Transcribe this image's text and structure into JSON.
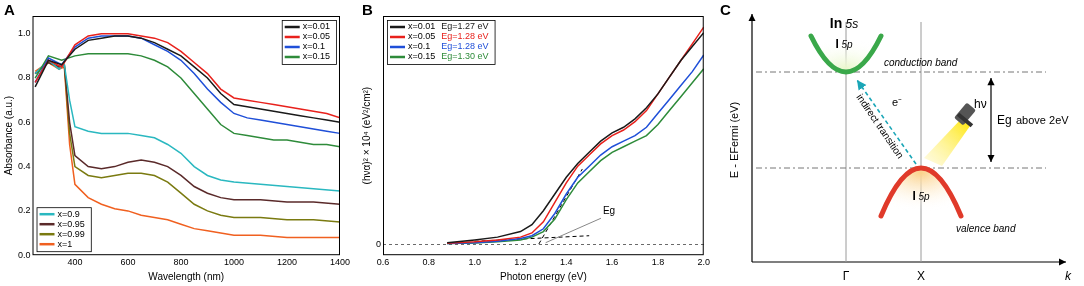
{
  "chart_data": [
    {
      "type": "line",
      "panel": "A",
      "x_label": "Wavelength (nm)",
      "y_label": "Absorbance (a.u.)",
      "xlim": [
        240,
        1400
      ],
      "xticks": [
        400,
        600,
        800,
        1000,
        1200,
        1400
      ],
      "ylim": [
        0,
        1.08
      ],
      "yticks": [
        {
          "value": 0,
          "label": "0.0"
        },
        0.2,
        0.4,
        0.6,
        0.8,
        {
          "value": 1,
          "label": "1.0"
        }
      ],
      "grid": false,
      "series": [
        {
          "name": "x=0.01",
          "color": "#1a1a1a",
          "legend": "upper right",
          "x": [
            250,
            300,
            350,
            400,
            450,
            500,
            550,
            600,
            650,
            700,
            750,
            800,
            850,
            900,
            950,
            1000,
            1050,
            1100,
            1150,
            1200,
            1250,
            1300,
            1350,
            1400
          ],
          "values": [
            0.76,
            0.88,
            0.86,
            0.93,
            0.97,
            0.98,
            0.99,
            0.99,
            0.98,
            0.96,
            0.93,
            0.9,
            0.85,
            0.8,
            0.73,
            0.68,
            0.67,
            0.66,
            0.65,
            0.64,
            0.63,
            0.62,
            0.61,
            0.6
          ]
        },
        {
          "name": "x=0.05",
          "color": "#e8211c",
          "legend": "upper right",
          "x": [
            250,
            300,
            350,
            400,
            450,
            500,
            550,
            600,
            650,
            700,
            750,
            800,
            850,
            900,
            950,
            1000,
            1050,
            1100,
            1150,
            1200,
            1250,
            1300,
            1350,
            1400
          ],
          "values": [
            0.78,
            0.88,
            0.85,
            0.95,
            0.99,
            1.0,
            1.0,
            1.0,
            0.99,
            0.98,
            0.96,
            0.92,
            0.87,
            0.82,
            0.75,
            0.71,
            0.7,
            0.69,
            0.68,
            0.67,
            0.66,
            0.65,
            0.64,
            0.62
          ]
        },
        {
          "name": "x=0.1",
          "color": "#1f4fd8",
          "legend": "upper right",
          "x": [
            250,
            300,
            350,
            400,
            450,
            500,
            550,
            600,
            650,
            700,
            750,
            800,
            850,
            900,
            950,
            1000,
            1050,
            1100,
            1150,
            1200,
            1250,
            1300,
            1350,
            1400
          ],
          "values": [
            0.78,
            0.89,
            0.86,
            0.94,
            0.98,
            0.99,
            0.99,
            0.99,
            0.98,
            0.95,
            0.92,
            0.88,
            0.82,
            0.75,
            0.69,
            0.64,
            0.62,
            0.61,
            0.6,
            0.59,
            0.58,
            0.57,
            0.56,
            0.55
          ]
        },
        {
          "name": "x=0.15",
          "color": "#2e8b3a",
          "legend": "upper right",
          "x": [
            250,
            300,
            350,
            400,
            450,
            500,
            550,
            600,
            650,
            700,
            750,
            800,
            850,
            900,
            950,
            1000,
            1050,
            1100,
            1150,
            1200,
            1250,
            1300,
            1350,
            1400
          ],
          "values": [
            0.8,
            0.9,
            0.88,
            0.9,
            0.91,
            0.91,
            0.91,
            0.91,
            0.9,
            0.88,
            0.85,
            0.8,
            0.73,
            0.66,
            0.59,
            0.55,
            0.54,
            0.53,
            0.52,
            0.52,
            0.51,
            0.5,
            0.5,
            0.49
          ]
        },
        {
          "name": "x=0.9",
          "color": "#2ab8c0",
          "legend": "lower left",
          "x": [
            250,
            300,
            340,
            360,
            380,
            400,
            450,
            500,
            550,
            600,
            650,
            700,
            750,
            800,
            850,
            900,
            950,
            1000,
            1100,
            1200,
            1300,
            1400
          ],
          "values": [
            0.82,
            0.88,
            0.84,
            0.86,
            0.7,
            0.58,
            0.56,
            0.55,
            0.55,
            0.55,
            0.54,
            0.53,
            0.5,
            0.46,
            0.4,
            0.36,
            0.34,
            0.33,
            0.32,
            0.31,
            0.3,
            0.29
          ]
        },
        {
          "name": "x=0.95",
          "color": "#5a2a2a",
          "legend": "lower left",
          "x": [
            250,
            300,
            340,
            360,
            380,
            400,
            450,
            500,
            550,
            600,
            650,
            700,
            750,
            800,
            850,
            900,
            950,
            1000,
            1100,
            1200,
            1300,
            1400
          ],
          "values": [
            0.82,
            0.87,
            0.85,
            0.86,
            0.6,
            0.45,
            0.4,
            0.39,
            0.4,
            0.42,
            0.43,
            0.42,
            0.4,
            0.36,
            0.31,
            0.28,
            0.26,
            0.25,
            0.25,
            0.24,
            0.24,
            0.23
          ]
        },
        {
          "name": "x=0.99",
          "color": "#7a7a10",
          "legend": "lower left",
          "x": [
            250,
            300,
            340,
            360,
            380,
            400,
            450,
            500,
            550,
            600,
            650,
            700,
            750,
            800,
            850,
            900,
            950,
            1000,
            1100,
            1200,
            1300,
            1400
          ],
          "values": [
            0.82,
            0.87,
            0.85,
            0.86,
            0.55,
            0.4,
            0.36,
            0.35,
            0.36,
            0.37,
            0.37,
            0.36,
            0.33,
            0.28,
            0.23,
            0.2,
            0.18,
            0.17,
            0.17,
            0.16,
            0.16,
            0.15
          ]
        },
        {
          "name": "x=1",
          "color": "#f06020",
          "legend": "lower left",
          "x": [
            250,
            300,
            340,
            360,
            380,
            400,
            450,
            500,
            550,
            600,
            650,
            700,
            750,
            800,
            850,
            900,
            950,
            1000,
            1100,
            1200,
            1300,
            1400
          ],
          "values": [
            0.83,
            0.87,
            0.84,
            0.85,
            0.5,
            0.32,
            0.26,
            0.23,
            0.21,
            0.2,
            0.18,
            0.17,
            0.16,
            0.14,
            0.12,
            0.11,
            0.1,
            0.09,
            0.09,
            0.08,
            0.08,
            0.08
          ]
        }
      ]
    },
    {
      "type": "line",
      "panel": "B",
      "x_label": "Photon energy (eV)",
      "y_label": "(hνα)² × 10⁴ (eV²/cm²)",
      "xlim": [
        0.6,
        2.0
      ],
      "xticks": [
        0.6,
        0.8,
        {
          "value": 1,
          "label": "1.0"
        },
        1.2,
        1.4,
        1.6,
        1.8,
        {
          "value": 2,
          "label": "2.0"
        }
      ],
      "ylim": [
        -0.4,
        8.2
      ],
      "yticks": [
        0
      ],
      "grid": "y",
      "legend": "upper left",
      "x": [
        0.88,
        1.0,
        1.1,
        1.2,
        1.25,
        1.3,
        1.35,
        1.4,
        1.45,
        1.5,
        1.55,
        1.6,
        1.65,
        1.7,
        1.75,
        1.8,
        1.85,
        1.9,
        1.95,
        2.0
      ],
      "series": [
        {
          "name": "x=0.01",
          "eg_label": "Eg=1.27 eV",
          "color": "#1a1a1a",
          "values": [
            0.05,
            0.15,
            0.25,
            0.45,
            0.7,
            1.2,
            1.8,
            2.4,
            2.9,
            3.3,
            3.7,
            4.0,
            4.2,
            4.5,
            4.9,
            5.4,
            6.0,
            6.6,
            7.1,
            7.6
          ]
        },
        {
          "name": "x=0.05",
          "eg_label": "Eg=1.28 eV",
          "color": "#e8211c",
          "values": [
            0.03,
            0.08,
            0.15,
            0.25,
            0.4,
            0.8,
            1.5,
            2.2,
            2.8,
            3.2,
            3.6,
            3.9,
            4.1,
            4.4,
            4.8,
            5.4,
            6.0,
            6.6,
            7.2,
            7.8
          ]
        },
        {
          "name": "x=0.1",
          "eg_label": "Eg=1.28 eV",
          "color": "#1f4fd8",
          "values": [
            0.02,
            0.05,
            0.1,
            0.2,
            0.3,
            0.55,
            1.1,
            1.8,
            2.4,
            2.8,
            3.2,
            3.5,
            3.7,
            3.9,
            4.2,
            4.7,
            5.2,
            5.7,
            6.2,
            6.8
          ]
        },
        {
          "name": "x=0.15",
          "eg_label": "Eg=1.30 eV",
          "color": "#2e8b3a",
          "values": [
            0.02,
            0.04,
            0.08,
            0.15,
            0.25,
            0.45,
            0.9,
            1.6,
            2.2,
            2.6,
            3.0,
            3.3,
            3.5,
            3.7,
            3.9,
            4.3,
            4.8,
            5.3,
            5.8,
            6.3
          ]
        }
      ],
      "fits": [
        {
          "x": [
            1.28,
            1.47
          ],
          "values": [
            0,
            2.7
          ],
          "color": "#000000",
          "line_style": "dashed"
        },
        {
          "x": [
            1.0,
            1.5
          ],
          "values": [
            0.1,
            0.3
          ],
          "color": "#000000",
          "line_style": "dashed"
        }
      ],
      "annotations": [
        {
          "text": "Eg",
          "x": 1.56,
          "y": 1.0,
          "point": [
            1.31,
            0.05
          ]
        }
      ]
    }
  ],
  "diagram": {
    "panel": "C",
    "y_axis_label": "E - EFermi (eV)",
    "x_axis_label": "k",
    "k_points": [
      "Γ",
      "X"
    ],
    "conduction_band": {
      "label": "conduction band",
      "orbitals": [
        "In 5s",
        "I 5p"
      ]
    },
    "valence_band": {
      "label": "valence band",
      "orbitals": [
        "I 5p"
      ]
    },
    "transition": {
      "label": "indirect transition",
      "carrier": "e⁻"
    },
    "photon": "hν",
    "gap": {
      "label": "Eg",
      "note": "above 2eV"
    }
  }
}
